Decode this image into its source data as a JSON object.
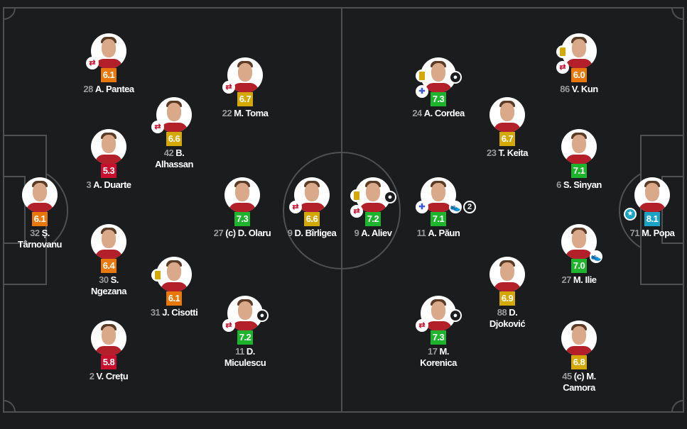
{
  "rating_colors": {
    "red": "#c8102e",
    "orange": "#e8780c",
    "yellow": "#d4a907",
    "green": "#1eb42e",
    "teal": "#1aa3c4"
  },
  "home": [
    {
      "number": "28",
      "name": "A. Pantea",
      "rating": "6.1",
      "color": "orange",
      "events": [
        "substitution-icon"
      ]
    },
    {
      "number": "22",
      "name": "M. Toma",
      "rating": "6.7",
      "color": "yellow",
      "events": [
        "substitution-icon"
      ]
    },
    {
      "number": "42",
      "name": "B. Alhassan",
      "rating": "6.6",
      "color": "yellow",
      "events": [
        "substitution-icon"
      ]
    },
    {
      "number": "3",
      "name": "A. Duarte",
      "rating": "5.3",
      "color": "red",
      "events": []
    },
    {
      "number": "32",
      "name": "Ș. Târnovanu",
      "rating": "6.1",
      "color": "orange",
      "events": []
    },
    {
      "number": "27",
      "name": "(c) D. Olaru",
      "rating": "7.3",
      "color": "green",
      "events": []
    },
    {
      "number": "9",
      "name": "D. Bîrligea",
      "rating": "6.6",
      "color": "yellow",
      "events": [
        "substitution-icon"
      ]
    },
    {
      "number": "30",
      "name": "S. Ngezana",
      "rating": "6.4",
      "color": "orange",
      "events": []
    },
    {
      "number": "31",
      "name": "J. Cisotti",
      "rating": "6.1",
      "color": "orange",
      "events": [
        "yellow-card-icon"
      ]
    },
    {
      "number": "11",
      "name": "D. Miculescu",
      "rating": "7.2",
      "color": "green",
      "events": [
        "substitution-icon",
        "goal-icon"
      ]
    },
    {
      "number": "2",
      "name": "V. Crețu",
      "rating": "5.8",
      "color": "red",
      "events": []
    }
  ],
  "away": [
    {
      "number": "24",
      "name": "A. Cordea",
      "rating": "7.3",
      "color": "green",
      "events": [
        "yellow-card-icon",
        "goal-icon",
        "injury-substitution-icon"
      ]
    },
    {
      "number": "86",
      "name": "V. Kun",
      "rating": "6.0",
      "color": "orange",
      "events": [
        "yellow-card-icon",
        "substitution-icon"
      ]
    },
    {
      "number": "23",
      "name": "T. Keita",
      "rating": "6.7",
      "color": "yellow",
      "events": []
    },
    {
      "number": "6",
      "name": "S. Sinyan",
      "rating": "7.1",
      "color": "green",
      "events": []
    },
    {
      "number": "9",
      "name": "A. Aliev",
      "rating": "7.2",
      "color": "green",
      "events": [
        "yellow-card-icon",
        "goal-icon",
        "substitution-icon"
      ]
    },
    {
      "number": "11",
      "name": "A. Păun",
      "rating": "7.1",
      "color": "green",
      "events": [
        "injury-substitution-icon",
        "assist-icon"
      ],
      "assist_count": "2"
    },
    {
      "number": "71",
      "name": "M. Popa",
      "rating": "8.1",
      "color": "teal",
      "events": [
        "man-of-the-match-icon"
      ]
    },
    {
      "number": "27",
      "name": "M. Ilie",
      "rating": "7.0",
      "color": "green",
      "events": [
        "assist-icon"
      ]
    },
    {
      "number": "88",
      "name": "D. Djoković",
      "rating": "6.9",
      "color": "yellow",
      "events": []
    },
    {
      "number": "17",
      "name": "M. Korenica",
      "rating": "7.3",
      "color": "green",
      "events": [
        "substitution-icon",
        "goal-icon"
      ]
    },
    {
      "number": "45",
      "name": "(c) M. Camora",
      "rating": "6.8",
      "color": "yellow",
      "events": []
    }
  ]
}
